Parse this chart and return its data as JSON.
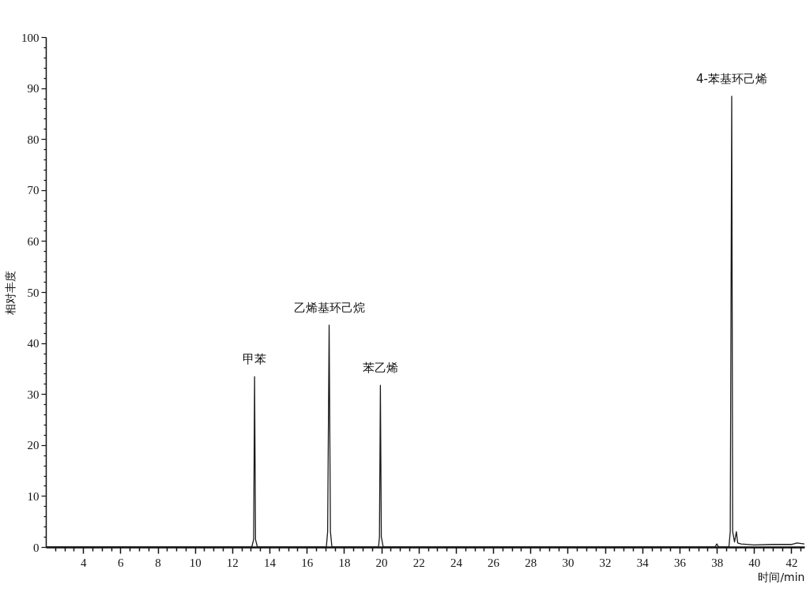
{
  "chart_data": {
    "type": "line",
    "xlabel": "时间/min",
    "ylabel": "相对丰度",
    "xlim": [
      2,
      42.7
    ],
    "ylim": [
      0,
      100
    ],
    "xticks": [
      {
        "value": 2.5,
        "label": null
      },
      {
        "value": 3,
        "label": null
      },
      {
        "value": 3.5,
        "label": null
      },
      4,
      {
        "value": 4.5,
        "label": null
      },
      {
        "value": 5,
        "label": null
      },
      {
        "value": 5.5,
        "label": null
      },
      6,
      {
        "value": 6.5,
        "label": null
      },
      {
        "value": 7,
        "label": null
      },
      {
        "value": 7.5,
        "label": null
      },
      8,
      {
        "value": 8.5,
        "label": null
      },
      {
        "value": 9,
        "label": null
      },
      {
        "value": 9.5,
        "label": null
      },
      10,
      {
        "value": 10.5,
        "label": null
      },
      {
        "value": 11,
        "label": null
      },
      {
        "value": 11.5,
        "label": null
      },
      12,
      {
        "value": 12.5,
        "label": null
      },
      {
        "value": 13,
        "label": null
      },
      {
        "value": 13.5,
        "label": null
      },
      14,
      {
        "value": 14.5,
        "label": null
      },
      {
        "value": 15,
        "label": null
      },
      {
        "value": 15.5,
        "label": null
      },
      16,
      {
        "value": 16.5,
        "label": null
      },
      {
        "value": 17,
        "label": null
      },
      {
        "value": 17.5,
        "label": null
      },
      18,
      {
        "value": 18.5,
        "label": null
      },
      {
        "value": 19,
        "label": null
      },
      {
        "value": 19.5,
        "label": null
      },
      20,
      {
        "value": 20.5,
        "label": null
      },
      {
        "value": 21,
        "label": null
      },
      {
        "value": 21.5,
        "label": null
      },
      22,
      {
        "value": 22.5,
        "label": null
      },
      {
        "value": 23,
        "label": null
      },
      {
        "value": 23.5,
        "label": null
      },
      24,
      {
        "value": 24.5,
        "label": null
      },
      {
        "value": 25,
        "label": null
      },
      {
        "value": 25.5,
        "label": null
      },
      26,
      {
        "value": 26.5,
        "label": null
      },
      {
        "value": 27,
        "label": null
      },
      {
        "value": 27.5,
        "label": null
      },
      28,
      {
        "value": 28.5,
        "label": null
      },
      {
        "value": 29,
        "label": null
      },
      {
        "value": 29.5,
        "label": null
      },
      30,
      {
        "value": 30.5,
        "label": null
      },
      {
        "value": 31,
        "label": null
      },
      {
        "value": 31.5,
        "label": null
      },
      32,
      {
        "value": 32.5,
        "label": null
      },
      {
        "value": 33,
        "label": null
      },
      {
        "value": 33.5,
        "label": null
      },
      34,
      {
        "value": 34.5,
        "label": null
      },
      {
        "value": 35,
        "label": null
      },
      {
        "value": 35.5,
        "label": null
      },
      36,
      {
        "value": 36.5,
        "label": null
      },
      {
        "value": 37,
        "label": null
      },
      {
        "value": 37.5,
        "label": null
      },
      38,
      {
        "value": 38.5,
        "label": null
      },
      {
        "value": 39,
        "label": null
      },
      {
        "value": 39.5,
        "label": null
      },
      40,
      {
        "value": 40.5,
        "label": null
      },
      {
        "value": 41,
        "label": null
      },
      {
        "value": 41.5,
        "label": null
      },
      42,
      {
        "value": 42.5,
        "label": null
      }
    ],
    "yticks": [
      0,
      {
        "value": 2,
        "label": null
      },
      {
        "value": 4,
        "label": null
      },
      {
        "value": 6,
        "label": null
      },
      {
        "value": 8,
        "label": null
      },
      10,
      {
        "value": 12,
        "label": null
      },
      {
        "value": 14,
        "label": null
      },
      {
        "value": 16,
        "label": null
      },
      {
        "value": 18,
        "label": null
      },
      20,
      {
        "value": 22,
        "label": null
      },
      {
        "value": 24,
        "label": null
      },
      {
        "value": 26,
        "label": null
      },
      {
        "value": 28,
        "label": null
      },
      30,
      {
        "value": 32,
        "label": null
      },
      {
        "value": 34,
        "label": null
      },
      {
        "value": 36,
        "label": null
      },
      {
        "value": 38,
        "label": null
      },
      40,
      {
        "value": 42,
        "label": null
      },
      {
        "value": 44,
        "label": null
      },
      {
        "value": 46,
        "label": null
      },
      {
        "value": 48,
        "label": null
      },
      50,
      {
        "value": 52,
        "label": null
      },
      {
        "value": 54,
        "label": null
      },
      {
        "value": 56,
        "label": null
      },
      {
        "value": 58,
        "label": null
      },
      60,
      {
        "value": 62,
        "label": null
      },
      {
        "value": 64,
        "label": null
      },
      {
        "value": 66,
        "label": null
      },
      {
        "value": 68,
        "label": null
      },
      70,
      {
        "value": 72,
        "label": null
      },
      {
        "value": 74,
        "label": null
      },
      {
        "value": 76,
        "label": null
      },
      {
        "value": 78,
        "label": null
      },
      80,
      {
        "value": 82,
        "label": null
      },
      {
        "value": 84,
        "label": null
      },
      {
        "value": 86,
        "label": null
      },
      {
        "value": 88,
        "label": null
      },
      90,
      {
        "value": 92,
        "label": null
      },
      {
        "value": 94,
        "label": null
      },
      {
        "value": 96,
        "label": null
      },
      {
        "value": 98,
        "label": null
      },
      100
    ],
    "series": [
      {
        "color": "#1a1a1a",
        "x": [
          2.0,
          13.05,
          13.15,
          13.2,
          13.25,
          13.35,
          17.05,
          17.12,
          17.2,
          17.27,
          17.35,
          19.85,
          19.9,
          19.95,
          20.0,
          20.1,
          37.9,
          38.0,
          38.1,
          38.65,
          38.72,
          38.8,
          38.85,
          38.95,
          39.05,
          39.12,
          39.3,
          40.0,
          41.0,
          42.0,
          42.3,
          42.7
        ],
        "values": [
          0,
          0,
          1.5,
          33.4,
          1.5,
          0,
          0,
          3,
          43.5,
          3,
          0,
          0,
          2,
          31.7,
          2,
          0,
          0,
          0.6,
          0,
          0,
          3,
          88.4,
          3,
          1,
          3,
          0.8,
          0.6,
          0.4,
          0.5,
          0.5,
          0.8,
          0.6
        ]
      }
    ],
    "annotations": [
      {
        "text": "甲苯",
        "x": 13.2,
        "y": 33.4
      },
      {
        "text": "乙烯基环己烷",
        "x": 17.2,
        "y": 43.5
      },
      {
        "text": "苯乙烯",
        "x": 19.95,
        "y": 31.7
      },
      {
        "text": "4-苯基环己烯",
        "x": 38.8,
        "y": 88.4
      }
    ],
    "line_style": "solid"
  }
}
